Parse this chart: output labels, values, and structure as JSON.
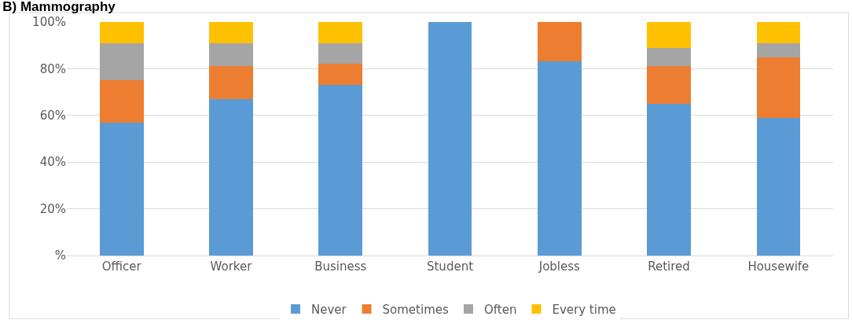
{
  "chart_data": {
    "type": "bar",
    "title": "B) Mammography",
    "stacked": true,
    "categories": [
      "Officer",
      "Worker",
      "Business",
      "Student",
      "Jobless",
      "Retired",
      "Housewife"
    ],
    "series": [
      {
        "name": "Never",
        "color": "#5b9bd5",
        "values": [
          57,
          67,
          73,
          100,
          83,
          65,
          59
        ]
      },
      {
        "name": "Sometimes",
        "color": "#ed7d31",
        "values": [
          18,
          14,
          9,
          0,
          17,
          16,
          26
        ]
      },
      {
        "name": "Often",
        "color": "#a5a5a5",
        "values": [
          16,
          10,
          9,
          0,
          0,
          8,
          6
        ]
      },
      {
        "name": "Every time",
        "color": "#ffc000",
        "values": [
          9,
          9,
          9,
          0,
          0,
          11,
          9
        ]
      }
    ],
    "ylim": [
      0,
      100
    ],
    "yticks": [
      {
        "value": 0,
        "label": "%"
      },
      {
        "value": 20,
        "label": "20%"
      },
      {
        "value": 40,
        "label": "40%"
      },
      {
        "value": 60,
        "label": "60%"
      },
      {
        "value": 80,
        "label": "80%"
      },
      {
        "value": 100,
        "label": "100%"
      }
    ],
    "grid": "y",
    "legend": "bottom"
  }
}
